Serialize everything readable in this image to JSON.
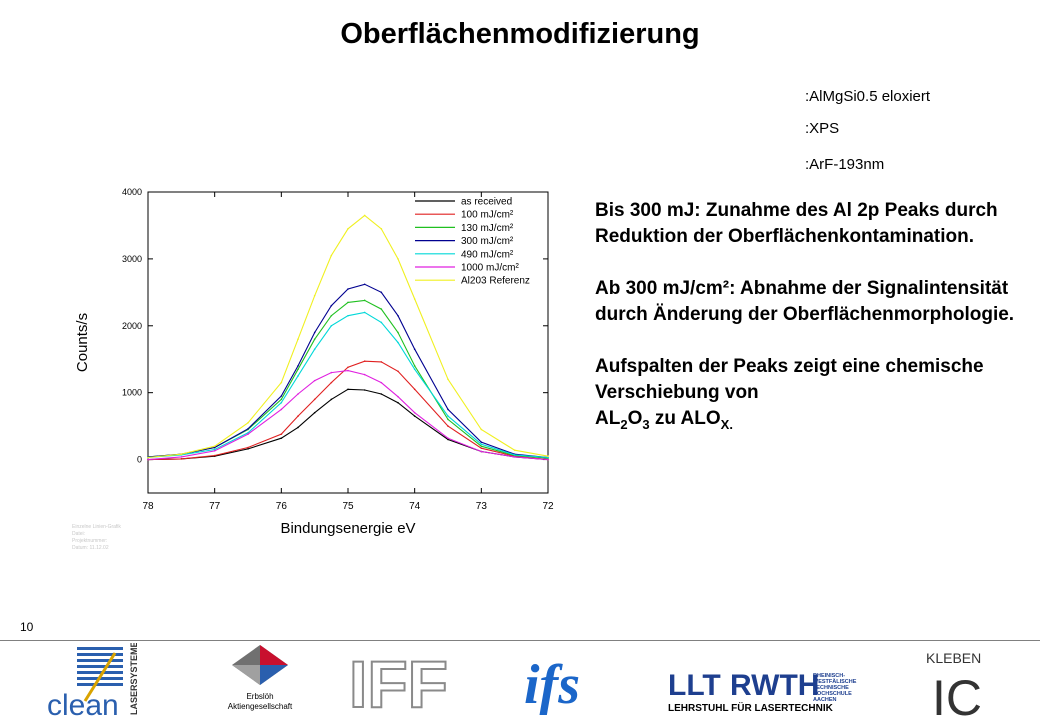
{
  "slide": {
    "title": "Oberflächenmodifizierung",
    "meta": [
      ":AlMgSi0.5 eloxiert",
      ":XPS",
      ":ArF-193nm"
    ],
    "description": {
      "p1": "Bis 300 mJ: Zunahme des Al 2p Peaks durch Reduktion der Oberflächenkontamination.",
      "p2": "Ab 300 mJ/cm²: Abnahme der Signalintensität durch Änderung der Oberflächenmorphologie.",
      "p3_prefix": "Aufspalten der Peaks zeigt eine chemische Verschiebung von",
      "p3_formula_a": "AL",
      "p3_sub_a": "2",
      "p3_formula_b": "O",
      "p3_sub_b": "3",
      "p3_mid": "zu",
      "p3_formula_c": "ALO",
      "p3_sub_c": "X."
    },
    "page_number": "10",
    "footer": {
      "erbsloeh_line1": "Erbslöh",
      "erbsloeh_line2": "Aktiengesellschaft",
      "clean_text": "clean",
      "clean_side": "LASERSYSTEME",
      "iff_text": "IFF",
      "ifs_text": "ifs",
      "llt_text": "LLT",
      "rwth_text": "RWTH",
      "rwth_side": [
        "RHEINISCH-",
        "WESTFÄLISCHE",
        "TECHNISCHE",
        "HOCHSCHULE",
        "AACHEN"
      ],
      "llt_caption": "LEHRSTUHL FÜR LASERTECHNIK",
      "kleben_text": "KLEBEN",
      "ic_text": "IC"
    }
  },
  "chart_data": {
    "type": "line",
    "xlabel": "Bindungsenergie eV",
    "ylabel": "Counts/s",
    "xlim": [
      78,
      72
    ],
    "ylim": [
      -500,
      4000
    ],
    "x_ticks": [
      78,
      77,
      76,
      75,
      74,
      73,
      72
    ],
    "y_ticks": [
      0,
      1000,
      2000,
      3000,
      4000
    ],
    "legend_position": "top-right",
    "grid": false,
    "x": [
      78,
      77.5,
      77,
      76.5,
      76,
      75.75,
      75.5,
      75.25,
      75,
      74.75,
      74.5,
      74.25,
      74,
      73.5,
      73,
      72.5,
      72
    ],
    "series": [
      {
        "name": "as received",
        "color": "#000000",
        "values": [
          0,
          10,
          50,
          160,
          320,
          480,
          700,
          900,
          1050,
          1040,
          980,
          850,
          650,
          300,
          120,
          40,
          0
        ]
      },
      {
        "name": "100 mJ/cm²",
        "color": "#e02020",
        "values": [
          0,
          10,
          60,
          180,
          380,
          650,
          900,
          1150,
          1380,
          1470,
          1460,
          1320,
          1050,
          500,
          170,
          50,
          0
        ]
      },
      {
        "name": "130 mJ/cm²",
        "color": "#20c020",
        "values": [
          40,
          80,
          180,
          450,
          900,
          1350,
          1800,
          2150,
          2350,
          2380,
          2250,
          1900,
          1400,
          600,
          200,
          60,
          20
        ]
      },
      {
        "name": "300 mJ/cm²",
        "color": "#000090",
        "values": [
          40,
          80,
          180,
          460,
          950,
          1400,
          1900,
          2300,
          2550,
          2620,
          2500,
          2150,
          1650,
          750,
          260,
          80,
          30
        ]
      },
      {
        "name": "490 mJ/cm²",
        "color": "#00d8d8",
        "values": [
          30,
          70,
          150,
          400,
          850,
          1250,
          1650,
          2000,
          2150,
          2200,
          2050,
          1750,
          1350,
          650,
          230,
          70,
          30
        ]
      },
      {
        "name": "1000 mJ/cm²",
        "color": "#e020e0",
        "values": [
          0,
          40,
          130,
          380,
          750,
          980,
          1180,
          1300,
          1330,
          1270,
          1150,
          940,
          700,
          320,
          120,
          40,
          0
        ]
      },
      {
        "name": "Al203 Referenz",
        "color": "#f0f020",
        "values": [
          30,
          80,
          200,
          550,
          1150,
          1800,
          2450,
          3050,
          3450,
          3650,
          3450,
          3000,
          2400,
          1200,
          450,
          140,
          50
        ]
      }
    ],
    "small_note_lines": [
      "Einzelne Linien-Grafik",
      "Datei:",
      "Projektnummer:",
      "Datum: 11.12.02"
    ]
  }
}
